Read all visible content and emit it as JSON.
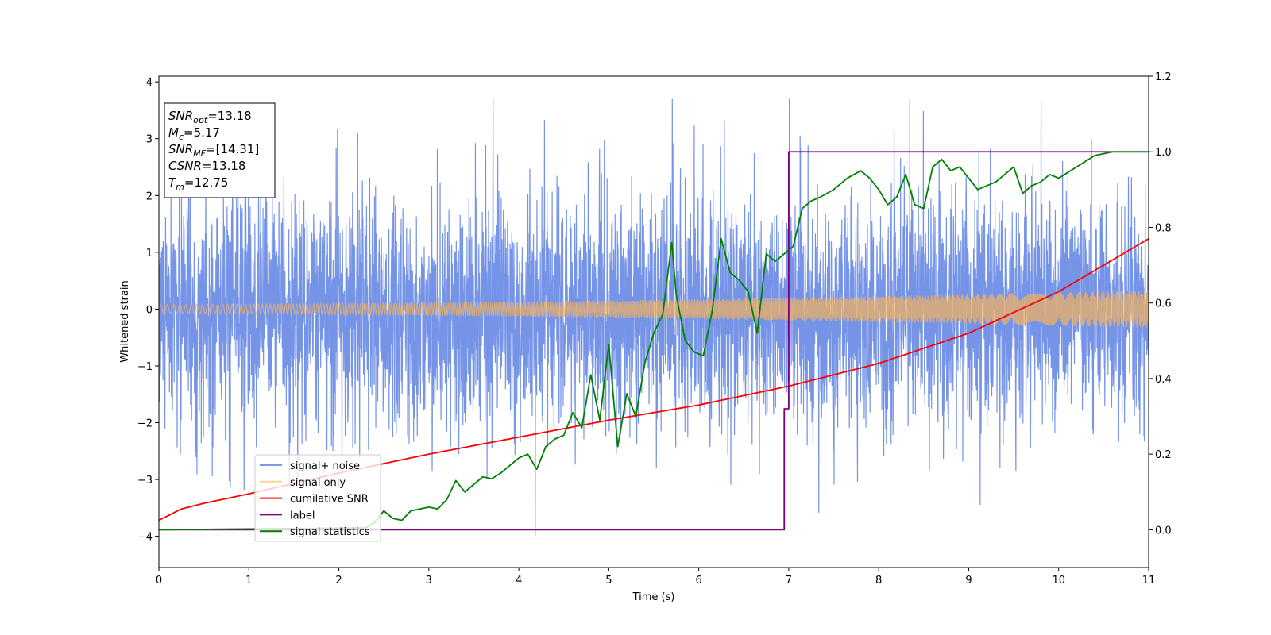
{
  "chart_data": {
    "type": "line",
    "title": "",
    "xlabel": "Time (s)",
    "ylabel": "Whitened strain",
    "xlim": [
      0,
      11
    ],
    "ylim": [
      -4.55,
      4.1
    ],
    "y2lim": [
      -0.1,
      1.2
    ],
    "x_ticks": [
      0,
      1,
      2,
      3,
      4,
      5,
      6,
      7,
      8,
      9,
      10,
      11
    ],
    "y_ticks": [
      -4,
      -3,
      -2,
      -1,
      0,
      1,
      2,
      3,
      4
    ],
    "y2_ticks": [
      0.0,
      0.2,
      0.4,
      0.6,
      0.8,
      1.0,
      1.2
    ],
    "grid": false,
    "legend_position": "lower-left",
    "info_box": [
      {
        "var": "SNR",
        "sub": "opt",
        "value": "=13.18"
      },
      {
        "var": "M",
        "sub": "c",
        "value": "=5.17"
      },
      {
        "var": "SNR",
        "sub": "MF",
        "value": "=[14.31]"
      },
      {
        "var": "CSNR",
        "sub": "",
        "value": "=13.18"
      },
      {
        "var": "T",
        "sub": "m",
        "value": "=12.75"
      }
    ],
    "series": [
      {
        "name": "signal+ noise",
        "axis": "left",
        "color": "#6f8ee6",
        "description": "dense noisy trace",
        "approx_range": [
          -4.15,
          3.7
        ],
        "typical_band": [
          -2.2,
          2.3
        ],
        "x_range": [
          0,
          11
        ]
      },
      {
        "name": "signal only",
        "axis": "left",
        "color": "#f5b25c",
        "description": "chirp",
        "amplitude_start": 0.08,
        "amplitude_end": 0.33,
        "x_range": [
          0,
          11
        ]
      },
      {
        "name": "cumilative SNR",
        "axis": "right",
        "color": "#ff0000",
        "x": [
          0,
          0.25,
          0.5,
          1,
          2,
          3,
          4,
          5,
          6,
          7,
          8,
          9,
          10,
          10.5,
          11
        ],
        "y": [
          0.025,
          0.055,
          0.07,
          0.095,
          0.15,
          0.2,
          0.245,
          0.29,
          0.33,
          0.38,
          0.44,
          0.52,
          0.63,
          0.7,
          0.77
        ]
      },
      {
        "name": "label",
        "axis": "right",
        "color": "#800080",
        "x": [
          0,
          6.95,
          6.95,
          7.0,
          7.0,
          11
        ],
        "y": [
          0.0,
          0.0,
          0.32,
          0.32,
          1.0,
          1.0
        ]
      },
      {
        "name": "signal statistics",
        "axis": "right",
        "color": "#008000",
        "x": [
          0,
          2.3,
          2.4,
          2.5,
          2.6,
          2.7,
          2.8,
          2.9,
          3.0,
          3.1,
          3.2,
          3.3,
          3.4,
          3.5,
          3.6,
          3.7,
          3.8,
          3.9,
          4.0,
          4.1,
          4.2,
          4.3,
          4.4,
          4.5,
          4.6,
          4.7,
          4.8,
          4.9,
          5.0,
          5.1,
          5.2,
          5.3,
          5.4,
          5.5,
          5.6,
          5.7,
          5.75,
          5.85,
          5.95,
          6.05,
          6.15,
          6.25,
          6.35,
          6.45,
          6.55,
          6.65,
          6.75,
          6.85,
          6.95,
          7.05,
          7.15,
          7.25,
          7.35,
          7.5,
          7.65,
          7.8,
          7.9,
          8.0,
          8.1,
          8.2,
          8.3,
          8.4,
          8.5,
          8.6,
          8.7,
          8.8,
          8.9,
          9.0,
          9.1,
          9.2,
          9.3,
          9.4,
          9.5,
          9.6,
          9.7,
          9.8,
          9.9,
          10.0,
          10.2,
          10.4,
          10.6,
          11.0
        ],
        "y": [
          0.0,
          0.005,
          0.02,
          0.05,
          0.03,
          0.025,
          0.05,
          0.055,
          0.06,
          0.055,
          0.08,
          0.13,
          0.1,
          0.12,
          0.14,
          0.135,
          0.15,
          0.17,
          0.19,
          0.2,
          0.16,
          0.22,
          0.24,
          0.25,
          0.31,
          0.27,
          0.41,
          0.29,
          0.49,
          0.22,
          0.36,
          0.3,
          0.44,
          0.52,
          0.57,
          0.76,
          0.62,
          0.5,
          0.47,
          0.46,
          0.58,
          0.77,
          0.68,
          0.66,
          0.63,
          0.52,
          0.73,
          0.71,
          0.73,
          0.75,
          0.85,
          0.87,
          0.88,
          0.9,
          0.93,
          0.95,
          0.93,
          0.9,
          0.86,
          0.88,
          0.94,
          0.86,
          0.85,
          0.96,
          0.98,
          0.95,
          0.96,
          0.93,
          0.9,
          0.91,
          0.92,
          0.94,
          0.96,
          0.89,
          0.91,
          0.92,
          0.94,
          0.93,
          0.96,
          0.99,
          1.0,
          1.0
        ]
      }
    ]
  }
}
